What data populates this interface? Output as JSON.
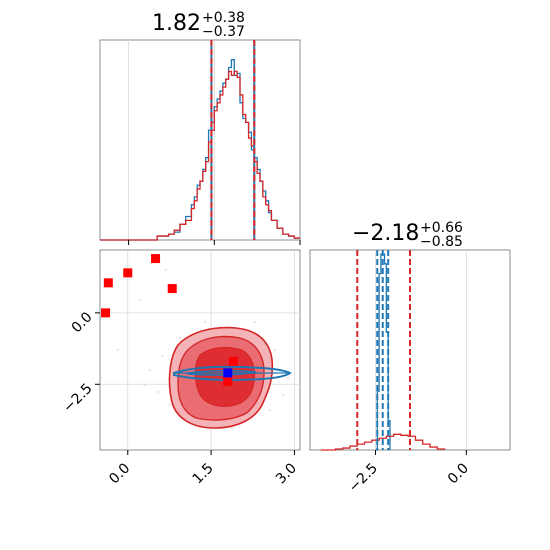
{
  "chart_data": [
    {
      "type": "histogram",
      "panel": "top-left",
      "title_main": "1.82",
      "title_sup": "+0.38",
      "title_sub": "−0.37",
      "xlim": [
        -0.5,
        3.0
      ],
      "quantiles_red": [
        1.45,
        2.2
      ],
      "quantiles_blue": [
        1.45,
        2.2
      ],
      "series": [
        {
          "color": "#1f77b4",
          "x": [
            -0.5,
            -0.3,
            -0.1,
            0.1,
            0.3,
            0.5,
            0.7,
            0.8,
            0.9,
            1.0,
            1.1,
            1.15,
            1.2,
            1.25,
            1.3,
            1.35,
            1.4,
            1.45,
            1.5,
            1.55,
            1.6,
            1.65,
            1.7,
            1.75,
            1.8,
            1.85,
            1.9,
            1.95,
            2.0,
            2.05,
            2.1,
            2.15,
            2.2,
            2.25,
            2.3,
            2.35,
            2.4,
            2.45,
            2.5,
            2.6,
            2.7,
            2.8,
            2.9,
            3.0
          ],
          "values": [
            0,
            0,
            0,
            0,
            0,
            0.02,
            0.03,
            0.04,
            0.08,
            0.12,
            0.18,
            0.22,
            0.28,
            0.3,
            0.36,
            0.42,
            0.56,
            0.6,
            0.68,
            0.72,
            0.76,
            0.8,
            0.82,
            0.88,
            0.92,
            0.84,
            0.85,
            0.7,
            0.62,
            0.6,
            0.55,
            0.46,
            0.42,
            0.36,
            0.3,
            0.25,
            0.2,
            0.14,
            0.1,
            0.06,
            0.03,
            0.02,
            0.01,
            0
          ]
        },
        {
          "color": "#d62728",
          "x": [
            -0.5,
            -0.3,
            -0.1,
            0.1,
            0.3,
            0.5,
            0.7,
            0.8,
            0.9,
            1.0,
            1.1,
            1.15,
            1.2,
            1.25,
            1.3,
            1.35,
            1.4,
            1.45,
            1.5,
            1.55,
            1.6,
            1.65,
            1.7,
            1.75,
            1.8,
            1.85,
            1.9,
            1.95,
            2.0,
            2.05,
            2.1,
            2.15,
            2.2,
            2.25,
            2.3,
            2.35,
            2.4,
            2.45,
            2.5,
            2.6,
            2.7,
            2.8,
            2.9,
            3.0
          ],
          "values": [
            0,
            0,
            0,
            0,
            0,
            0.02,
            0.03,
            0.05,
            0.08,
            0.1,
            0.16,
            0.2,
            0.26,
            0.3,
            0.35,
            0.4,
            0.5,
            0.56,
            0.66,
            0.7,
            0.74,
            0.78,
            0.82,
            0.86,
            0.84,
            0.86,
            0.83,
            0.74,
            0.64,
            0.6,
            0.52,
            0.48,
            0.4,
            0.34,
            0.3,
            0.22,
            0.18,
            0.15,
            0.1,
            0.06,
            0.03,
            0.02,
            0.01,
            0
          ]
        }
      ]
    },
    {
      "type": "histogram",
      "panel": "bottom-right",
      "title_main": "−2.18",
      "title_sup": "+0.66",
      "title_sub": "−0.85",
      "xlim": [
        -4.3,
        1.2
      ],
      "xticks": [
        "−2.5",
        "0.0"
      ],
      "xtick_values": [
        -2.5,
        0.0
      ],
      "quantiles_red": [
        -3.0,
        -1.55
      ],
      "quantiles_blue": [
        -2.45,
        -2.3,
        -2.15
      ],
      "series": [
        {
          "color": "#1f77b4",
          "x": [
            -2.5,
            -2.45,
            -2.4,
            -2.35,
            -2.3,
            -2.25,
            -2.2,
            -2.15,
            -2.1
          ],
          "values": [
            0,
            0.3,
            0.9,
            1.0,
            1.0,
            0.95,
            0.6,
            0.15,
            0
          ]
        },
        {
          "color": "#d62728",
          "x": [
            -4.0,
            -3.6,
            -3.4,
            -3.2,
            -3.0,
            -2.8,
            -2.6,
            -2.4,
            -2.2,
            -2.0,
            -1.8,
            -1.6,
            -1.4,
            -1.2,
            -1.0,
            -0.8,
            -0.6
          ],
          "values": [
            0,
            0.005,
            0.01,
            0.02,
            0.03,
            0.04,
            0.05,
            0.06,
            0.07,
            0.08,
            0.075,
            0.07,
            0.05,
            0.03,
            0.015,
            0.005,
            0
          ]
        }
      ]
    },
    {
      "type": "scatter",
      "panel": "bottom-left",
      "xlim": [
        -0.5,
        3.1
      ],
      "ylim": [
        -4.8,
        2.2
      ],
      "xticks": [
        "0.0",
        "1.5",
        "3.0"
      ],
      "xtick_values": [
        0.0,
        1.5,
        3.0
      ],
      "yticks": [
        "0.0",
        "−2.5"
      ],
      "ytick_values": [
        0.0,
        -2.5
      ],
      "red_points": [
        [
          -0.4,
          0.0
        ],
        [
          -0.35,
          1.05
        ],
        [
          0.0,
          1.4
        ],
        [
          0.5,
          1.9
        ],
        [
          0.8,
          0.85
        ],
        [
          1.9,
          -1.7
        ],
        [
          1.8,
          -2.4
        ]
      ],
      "blue_point": [
        1.8,
        -2.1
      ],
      "red_contour_levels": 3,
      "blue_contour_center": [
        1.3,
        -2.1
      ]
    }
  ]
}
